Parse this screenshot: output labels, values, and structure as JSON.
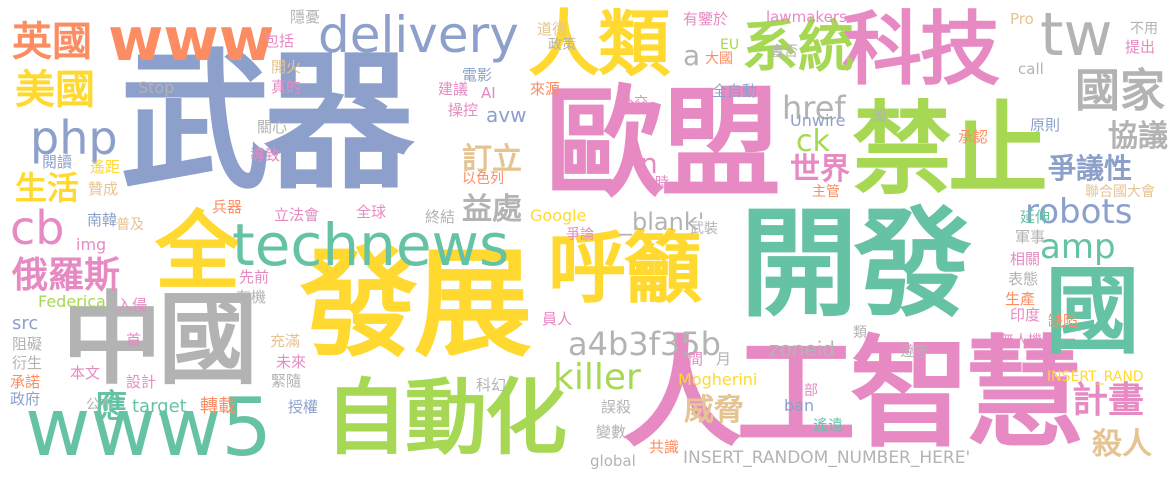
{
  "words": [
    {
      "text": "武器",
      "color": "#8DA0CB"
    },
    {
      "text": "開發",
      "color": "#66C2A5"
    },
    {
      "text": "歐盟",
      "color": "#E78AC3"
    },
    {
      "text": "發展",
      "color": "#FFD92F"
    },
    {
      "text": "人工智慧",
      "color": "#E78AC3"
    },
    {
      "text": "禁止",
      "color": "#A6D854"
    },
    {
      "text": "科技",
      "color": "#E78AC3"
    },
    {
      "text": "國",
      "color": "#66C2A5"
    },
    {
      "text": "中國",
      "color": "#B3B3B3"
    },
    {
      "text": "www5",
      "color": "#66C2A5"
    },
    {
      "text": "自動化",
      "color": "#A6D854"
    },
    {
      "text": "全",
      "color": "#FFD92F"
    },
    {
      "text": "人類",
      "color": "#FFD92F"
    },
    {
      "text": "呼籲",
      "color": "#FFD92F"
    },
    {
      "text": "technews",
      "color": "#66C2A5"
    },
    {
      "text": "www",
      "color": "#FC8D62"
    },
    {
      "text": "delivery",
      "color": "#8DA0CB"
    },
    {
      "text": "系統",
      "color": "#A6D854"
    },
    {
      "text": "tw",
      "color": "#B3B3B3"
    },
    {
      "text": "國家",
      "color": "#B3B3B3"
    },
    {
      "text": "英國",
      "color": "#FC8D62"
    },
    {
      "text": "美國",
      "color": "#FFD92F"
    },
    {
      "text": "php",
      "color": "#8DA0CB"
    },
    {
      "text": "cb",
      "color": "#E78AC3"
    },
    {
      "text": "俄羅斯",
      "color": "#E78AC3"
    },
    {
      "text": "amp",
      "color": "#66C2A5"
    },
    {
      "text": "robots",
      "color": "#8DA0CB"
    },
    {
      "text": "a4b3f35b",
      "color": "#B3B3B3"
    },
    {
      "text": "killer",
      "color": "#A6D854"
    },
    {
      "text": "計畫",
      "color": "#E78AC3"
    },
    {
      "text": "殺人",
      "color": "#E5C494"
    },
    {
      "text": "協議",
      "color": "#B3B3B3"
    },
    {
      "text": "爭議性",
      "color": "#8DA0CB"
    },
    {
      "text": "href",
      "color": "#B3B3B3"
    },
    {
      "text": "ck",
      "color": "#A6D854"
    },
    {
      "text": "世界",
      "color": "#E78AC3"
    },
    {
      "text": "訂立",
      "color": "#E5C494"
    },
    {
      "text": "益處",
      "color": "#B3B3B3"
    },
    {
      "text": "威脅",
      "color": "#E5C494"
    },
    {
      "text": "生活",
      "color": "#FFD92F"
    },
    {
      "text": "應",
      "color": "#66C2A5"
    },
    {
      "text": "a",
      "color": "#B3B3B3"
    },
    {
      "text": "n",
      "color": "#E78AC3"
    },
    {
      "text": "INSERT_RANDOM_NUMBER_HERE'",
      "color": "#B3B3B3"
    },
    {
      "text": "_blank'",
      "color": "#B3B3B3"
    },
    {
      "text": "zoneid",
      "color": "#B3B3B3"
    },
    {
      "text": "avw",
      "color": "#8DA0CB"
    },
    {
      "text": "Mogherini",
      "color": "#FFD92F"
    },
    {
      "text": "target",
      "color": "#66C2A5"
    },
    {
      "text": "轉載",
      "color": "#FC8D62"
    },
    {
      "text": "Stop",
      "color": "#B3B3B3"
    },
    {
      "text": "Google",
      "color": "#FFD92F"
    },
    {
      "text": "Federica",
      "color": "#A6D854"
    },
    {
      "text": "Unwire",
      "color": "#8DA0CB"
    },
    {
      "text": "lawmakers",
      "color": "#E78AC3"
    },
    {
      "text": "INSERT_RAND",
      "color": "#FFD92F"
    },
    {
      "text": "call",
      "color": "#B3B3B3"
    },
    {
      "text": "Pro",
      "color": "#E5C494"
    },
    {
      "text": "src",
      "color": "#8DA0CB"
    },
    {
      "text": "img",
      "color": "#E78AC3"
    },
    {
      "text": "global",
      "color": "#B3B3B3"
    },
    {
      "text": "ban",
      "color": "#8DA0CB"
    },
    {
      "text": "EU",
      "color": "#A6D854"
    },
    {
      "text": "AI",
      "color": "#E78AC3"
    },
    {
      "text": "隱憂",
      "color": "#B3B3B3"
    },
    {
      "text": "包括",
      "color": "#E78AC3"
    },
    {
      "text": "開火",
      "color": "#E5C494"
    },
    {
      "text": "真的",
      "color": "#E78AC3"
    },
    {
      "text": "關心",
      "color": "#B3B3B3"
    },
    {
      "text": "導致",
      "color": "#E78AC3"
    },
    {
      "text": "閱讀",
      "color": "#8DA0CB"
    },
    {
      "text": "遙距",
      "color": "#FFD92F"
    },
    {
      "text": "贊成",
      "color": "#E5C494"
    },
    {
      "text": "兵器",
      "color": "#FC8D62"
    },
    {
      "text": "南韓",
      "color": "#8DA0CB"
    },
    {
      "text": "普及",
      "color": "#E5C494"
    },
    {
      "text": "立法會",
      "color": "#E78AC3"
    },
    {
      "text": "全球",
      "color": "#E78AC3"
    },
    {
      "text": "終結",
      "color": "#B3B3B3"
    },
    {
      "text": "以色列",
      "color": "#FC8D62"
    },
    {
      "text": "道德",
      "color": "#E5C494"
    },
    {
      "text": "政策",
      "color": "#B3B3B3"
    },
    {
      "text": "電影",
      "color": "#8DA0CB"
    },
    {
      "text": "建議",
      "color": "#E78AC3"
    },
    {
      "text": "操控",
      "color": "#E78AC3"
    },
    {
      "text": "來源",
      "color": "#FC8D62"
    },
    {
      "text": "外交",
      "color": "#E78AC3"
    },
    {
      "text": "時",
      "color": "#E78AC3"
    },
    {
      "text": "有鑒於",
      "color": "#E78AC3"
    },
    {
      "text": "大國",
      "color": "#FC8D62"
    },
    {
      "text": "全自動",
      "color": "#8DA0CB"
    },
    {
      "text": "會否",
      "color": "#B3B3B3"
    },
    {
      "text": "圖",
      "color": "#B3B3B3"
    },
    {
      "text": "承認",
      "color": "#FC8D62"
    },
    {
      "text": "原則",
      "color": "#8DA0CB"
    },
    {
      "text": "不用",
      "color": "#B3B3B3"
    },
    {
      "text": "提出",
      "color": "#E78AC3"
    },
    {
      "text": "主管",
      "color": "#FC8D62"
    },
    {
      "text": "聯合國大會",
      "color": "#E5C494"
    },
    {
      "text": "延伸",
      "color": "#66C2A5"
    },
    {
      "text": "軍事",
      "color": "#B3B3B3"
    },
    {
      "text": "相關",
      "color": "#E78AC3"
    },
    {
      "text": "表態",
      "color": "#B3B3B3"
    },
    {
      "text": "生產",
      "color": "#FC8D62"
    },
    {
      "text": "印度",
      "color": "#E78AC3"
    },
    {
      "text": "缺陷",
      "color": "#FC8D62"
    },
    {
      "text": "類",
      "color": "#B3B3B3"
    },
    {
      "text": "遵守",
      "color": "#B3B3B3"
    },
    {
      "text": "無人機",
      "color": "#E78AC3"
    },
    {
      "text": "遙遠",
      "color": "#66C2A5"
    },
    {
      "text": "內部",
      "color": "#E78AC3"
    },
    {
      "text": "共識",
      "color": "#FC8D62"
    },
    {
      "text": "變數",
      "color": "#B3B3B3"
    },
    {
      "text": "誤殺",
      "color": "#B3B3B3"
    },
    {
      "text": "科幻",
      "color": "#B3B3B3"
    },
    {
      "text": "時間",
      "color": "#E78AC3"
    },
    {
      "text": "月",
      "color": "#B3B3B3"
    },
    {
      "text": "爭論",
      "color": "#E78AC3"
    },
    {
      "text": "武裝",
      "color": "#B3B3B3"
    },
    {
      "text": "員人",
      "color": "#E78AC3"
    },
    {
      "text": "先前",
      "color": "#E78AC3"
    },
    {
      "text": "有機",
      "color": "#B3B3B3"
    },
    {
      "text": "充滿",
      "color": "#E5C494"
    },
    {
      "text": "未來",
      "color": "#E78AC3"
    },
    {
      "text": "緊隨",
      "color": "#B3B3B3"
    },
    {
      "text": "授權",
      "color": "#8DA0CB"
    },
    {
      "text": "設計",
      "color": "#E78AC3"
    },
    {
      "text": "公布",
      "color": "#B3B3B3"
    },
    {
      "text": "入侵",
      "color": "#E78AC3"
    },
    {
      "text": "首",
      "color": "#E78AC3"
    },
    {
      "text": "本文",
      "color": "#E78AC3"
    },
    {
      "text": "阻礙",
      "color": "#B3B3B3"
    },
    {
      "text": "衍生",
      "color": "#B3B3B3"
    },
    {
      "text": "承諾",
      "color": "#FC8D62"
    },
    {
      "text": "政府",
      "color": "#8DA0CB"
    }
  ]
}
